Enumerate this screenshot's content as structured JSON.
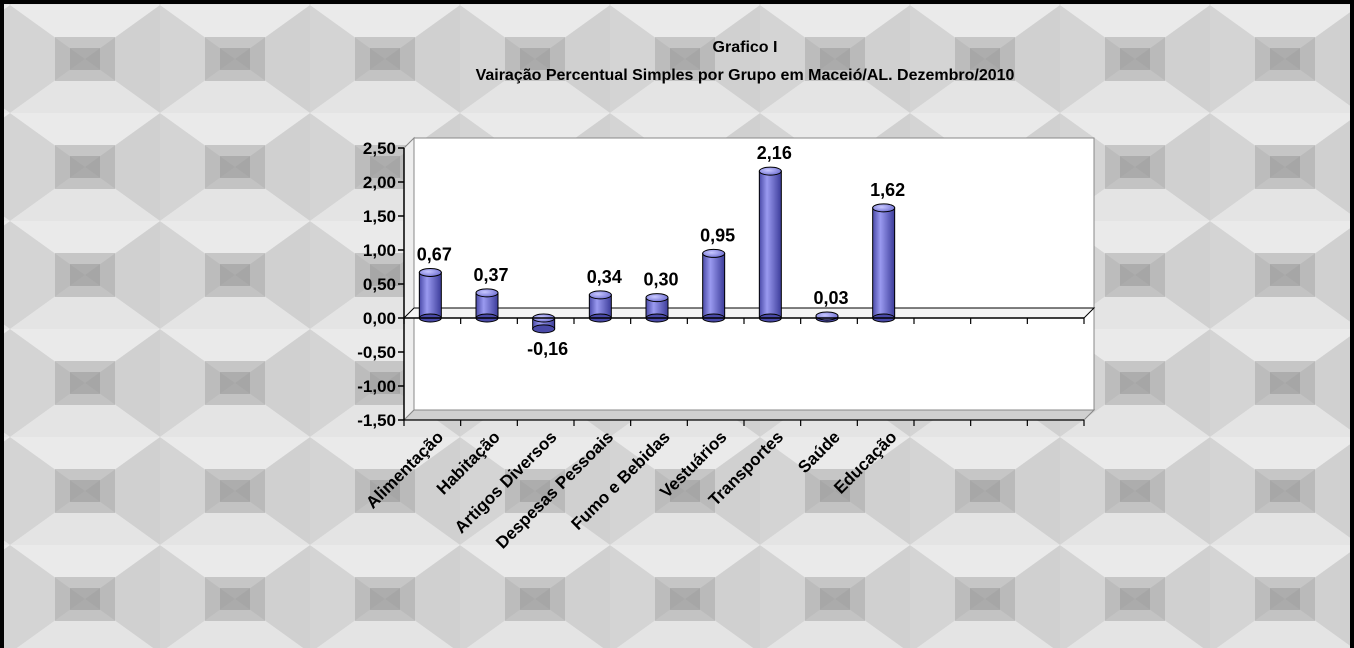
{
  "chart_data": {
    "type": "bar",
    "title": "Grafico I",
    "subtitle": "Vairação Percentual Simples por Grupo em Maceió/AL. Dezembro/2010",
    "categories": [
      "Alimentação",
      "Habitação",
      "Artigos Diversos",
      "Despesas Pessoais",
      "Fumo e Bebidas",
      "Vestuários",
      "Transportes",
      "Saúde",
      "Educação",
      "",
      "",
      ""
    ],
    "values": [
      0.67,
      0.37,
      -0.16,
      0.34,
      0.3,
      0.95,
      2.16,
      0.03,
      1.62,
      null,
      null,
      null
    ],
    "value_labels": [
      "0,67",
      "0,37",
      "-0,16",
      "0,34",
      "0,30",
      "0,95",
      "2,16",
      "0,03",
      "1,62",
      "",
      "",
      ""
    ],
    "ylim": [
      -1.5,
      2.5
    ],
    "yticks": [
      2.5,
      2.0,
      1.5,
      1.0,
      0.5,
      0.0,
      -0.5,
      -1.0,
      -1.5
    ],
    "ytick_labels": [
      "2,50",
      "2,00",
      "1,50",
      "1,00",
      "0,50",
      "0,00",
      "-0,50",
      "-1,00",
      "-1,50"
    ],
    "xlabel": "",
    "ylabel": "",
    "grid": false,
    "legend": "none",
    "bar_color": "#7b7bd8",
    "bar_edge": "#000000"
  }
}
